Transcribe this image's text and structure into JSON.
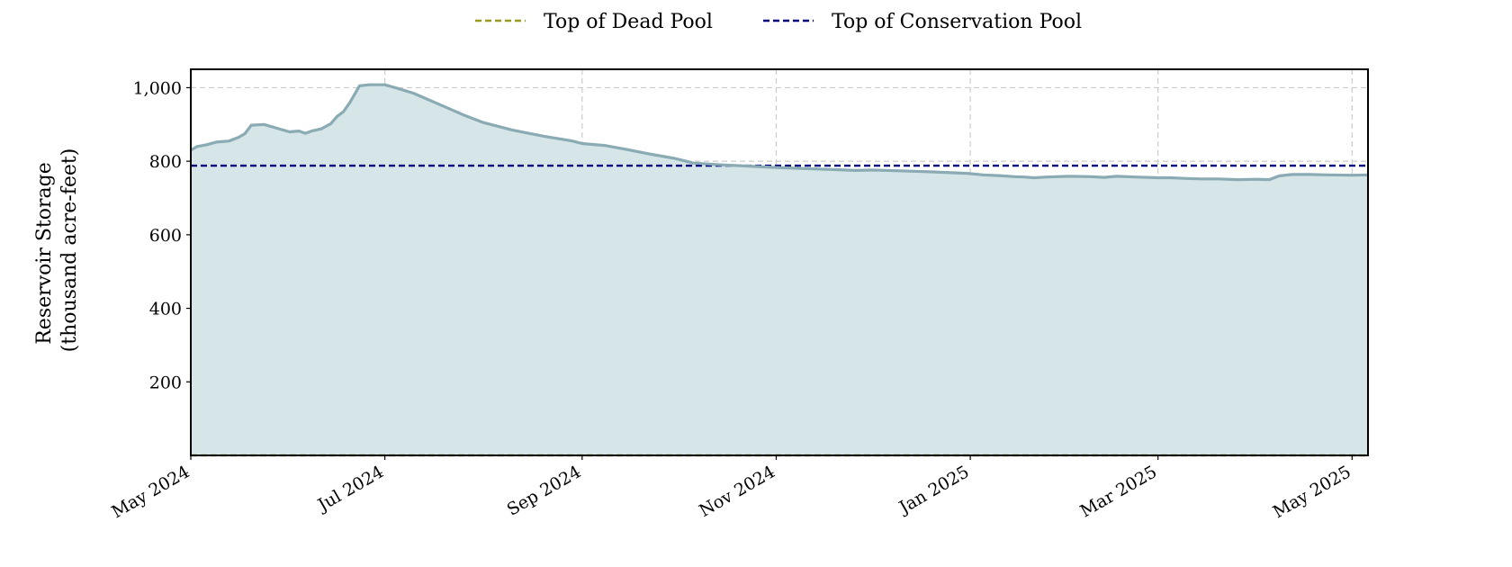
{
  "chart_data": {
    "type": "area",
    "title": "",
    "xlabel": "",
    "ylabel_lines": [
      "Reservoir Storage",
      "(thousand acre-feet)"
    ],
    "xlim": [
      "2024-05-01",
      "2025-05-06"
    ],
    "ylim": [
      0,
      1050
    ],
    "grid": true,
    "legend_position": "top-center",
    "x_ticks": [
      {
        "date": "2024-05-01",
        "label": "May 2024"
      },
      {
        "date": "2024-07-01",
        "label": "Jul 2024"
      },
      {
        "date": "2024-09-01",
        "label": "Sep 2024"
      },
      {
        "date": "2024-11-01",
        "label": "Nov 2024"
      },
      {
        "date": "2025-01-01",
        "label": "Jan 2025"
      },
      {
        "date": "2025-03-01",
        "label": "Mar 2025"
      },
      {
        "date": "2025-05-01",
        "label": "May 2025"
      }
    ],
    "y_ticks": [
      {
        "value": 200,
        "label": "200"
      },
      {
        "value": 400,
        "label": "400"
      },
      {
        "value": 600,
        "label": "600"
      },
      {
        "value": 800,
        "label": "800"
      },
      {
        "value": 1000,
        "label": "1,000"
      }
    ],
    "series": [
      {
        "kind": "storage",
        "line_color": "#8aabb3",
        "fill_color": "#d6e5e8",
        "points": [
          [
            "2024-05-01",
            830
          ],
          [
            "2024-05-03",
            840
          ],
          [
            "2024-05-06",
            845
          ],
          [
            "2024-05-09",
            852
          ],
          [
            "2024-05-13",
            855
          ],
          [
            "2024-05-16",
            865
          ],
          [
            "2024-05-18",
            875
          ],
          [
            "2024-05-20",
            898
          ],
          [
            "2024-05-24",
            900
          ],
          [
            "2024-05-28",
            890
          ],
          [
            "2024-06-01",
            880
          ],
          [
            "2024-06-04",
            882
          ],
          [
            "2024-06-06",
            876
          ],
          [
            "2024-06-08",
            882
          ],
          [
            "2024-06-11",
            888
          ],
          [
            "2024-06-14",
            902
          ],
          [
            "2024-06-16",
            922
          ],
          [
            "2024-06-18",
            935
          ],
          [
            "2024-06-20",
            960
          ],
          [
            "2024-06-23",
            1005
          ],
          [
            "2024-06-26",
            1008
          ],
          [
            "2024-07-01",
            1008
          ],
          [
            "2024-07-05",
            998
          ],
          [
            "2024-07-10",
            985
          ],
          [
            "2024-07-18",
            955
          ],
          [
            "2024-07-26",
            925
          ],
          [
            "2024-08-01",
            905
          ],
          [
            "2024-08-10",
            885
          ],
          [
            "2024-08-20",
            868
          ],
          [
            "2024-08-29",
            855
          ],
          [
            "2024-09-01",
            848
          ],
          [
            "2024-09-08",
            843
          ],
          [
            "2024-09-15",
            832
          ],
          [
            "2024-09-22",
            820
          ],
          [
            "2024-09-30",
            808
          ],
          [
            "2024-10-06",
            795
          ],
          [
            "2024-10-15",
            790
          ],
          [
            "2024-10-25",
            786
          ],
          [
            "2024-11-01",
            783
          ],
          [
            "2024-11-10",
            780
          ],
          [
            "2024-11-20",
            777
          ],
          [
            "2024-11-26",
            775
          ],
          [
            "2024-12-01",
            776
          ],
          [
            "2024-12-10",
            774
          ],
          [
            "2024-12-20",
            771
          ],
          [
            "2024-12-31",
            767
          ],
          [
            "2025-01-05",
            763
          ],
          [
            "2025-01-10",
            761
          ],
          [
            "2025-01-15",
            758
          ],
          [
            "2025-01-18",
            757
          ],
          [
            "2025-01-21",
            755
          ],
          [
            "2025-01-25",
            757
          ],
          [
            "2025-02-01",
            759
          ],
          [
            "2025-02-08",
            758
          ],
          [
            "2025-02-12",
            756
          ],
          [
            "2025-02-16",
            759
          ],
          [
            "2025-02-22",
            757
          ],
          [
            "2025-03-01",
            755
          ],
          [
            "2025-03-05",
            755
          ],
          [
            "2025-03-10",
            753
          ],
          [
            "2025-03-15",
            752
          ],
          [
            "2025-03-20",
            752
          ],
          [
            "2025-03-26",
            750
          ],
          [
            "2025-04-01",
            751
          ],
          [
            "2025-04-05",
            750
          ],
          [
            "2025-04-08",
            760
          ],
          [
            "2025-04-12",
            764
          ],
          [
            "2025-04-18",
            764
          ],
          [
            "2025-04-23",
            763
          ],
          [
            "2025-05-01",
            762
          ],
          [
            "2025-05-06",
            763
          ]
        ]
      },
      {
        "name": "Top of Dead Pool",
        "kind": "reference",
        "value": 0,
        "line_color": "#9a9a1e",
        "dash": "dashed"
      },
      {
        "name": "Top of Conservation Pool",
        "kind": "reference",
        "value": 788,
        "line_color": "#000080",
        "dash": "dashed"
      }
    ]
  }
}
